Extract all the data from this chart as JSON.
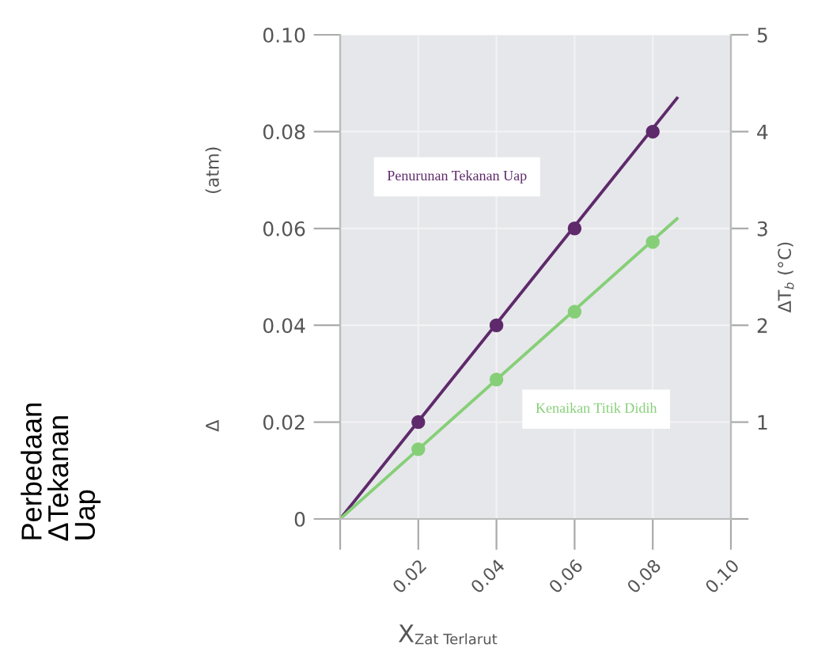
{
  "chart_data": {
    "type": "line",
    "xlabel": "X$_{Zat Terlarut}$",
    "y2label": "ΔT$_{b}$ (°C)",
    "annotations": [
      "Perbedaan ΔTekanan Uap",
      "Δ",
      "(atm)"
    ],
    "series": [
      {
        "name": "Penurunan Tekanan Uap",
        "color": "#5e2a6b",
        "x": [
          0,
          0.0862
        ],
        "values": [
          0,
          0.0869
        ],
        "marker": "none"
      },
      {
        "type": "scatter",
        "color": "#5e2a6b",
        "x": [
          0.02,
          0.04,
          0.06,
          0.08
        ],
        "values": [
          0.02,
          0.04,
          0.06,
          0.08
        ],
        "marker": "circle"
      },
      {
        "name": "Kenaikan Titik Didih",
        "axis": "y2",
        "color": "#86cf78",
        "x": [
          0,
          0.0862
        ],
        "values": [
          0,
          3.1
        ],
        "marker": "none"
      },
      {
        "type": "scatter",
        "axis": "y2",
        "color": "#86cf78",
        "x": [
          0.02,
          0.04,
          0.06,
          0.08
        ],
        "values": [
          0.72,
          1.44,
          2.14,
          2.86
        ],
        "marker": "circle"
      }
    ],
    "xlim": [
      0,
      0.1
    ],
    "xticks": [
      {
        "value": 0,
        "label": null
      },
      0.02,
      0.04,
      0.06,
      0.08,
      {
        "value": 0.1,
        "label": "0.10"
      }
    ],
    "ylim": [
      0,
      0.1
    ],
    "yticks": [
      0,
      0.02,
      0.04,
      0.06,
      0.08,
      {
        "value": 0.1,
        "label": "0.10"
      }
    ],
    "y2lim": [
      0,
      5
    ],
    "y2ticks": [
      {
        "value": 0,
        "label": null
      },
      1,
      2,
      3,
      4,
      5
    ],
    "grid": true
  }
}
